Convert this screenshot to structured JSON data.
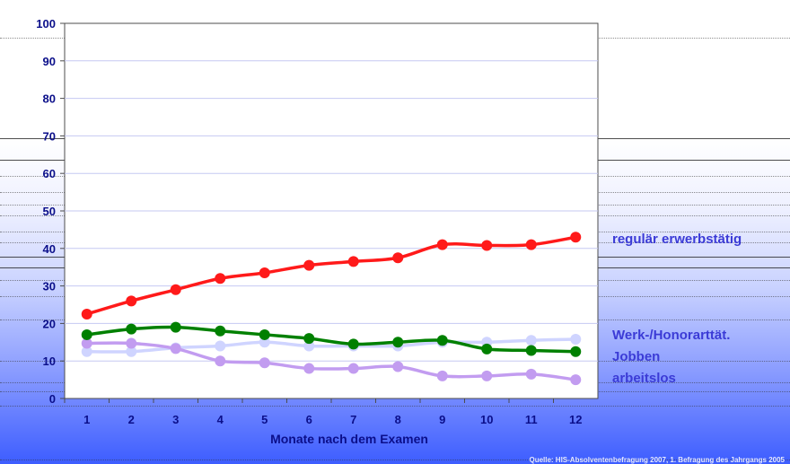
{
  "chart_data": {
    "type": "line",
    "xlabel": "Monate nach dem Examen",
    "ylabel": "",
    "x": [
      1,
      2,
      3,
      4,
      5,
      6,
      7,
      8,
      9,
      10,
      11,
      12
    ],
    "yticks": [
      0,
      10,
      20,
      30,
      40,
      50,
      60,
      70,
      80,
      90,
      100
    ],
    "ylim": [
      0,
      100
    ],
    "grid": true,
    "series": [
      {
        "name": "regulär erwerbstätig",
        "color": "#ff1a1a",
        "values": [
          22.5,
          26,
          29,
          32,
          33.5,
          35.5,
          36.5,
          37.5,
          41,
          40.8,
          41,
          43
        ]
      },
      {
        "name": "Werk-/Honorarttät.",
        "color": "#cfd4ff",
        "values": [
          12.5,
          12.5,
          13.5,
          14,
          15,
          14,
          14,
          14,
          15,
          15,
          15.5,
          15.8
        ]
      },
      {
        "name": "Jobben",
        "color": "#008000",
        "values": [
          17,
          18.5,
          19,
          18,
          17,
          16,
          14.5,
          15,
          15.5,
          13.2,
          12.8,
          12.5
        ]
      },
      {
        "name": "arbeitslos",
        "color": "#c29cf0",
        "values": [
          14.7,
          14.7,
          13.3,
          10,
          9.5,
          8,
          8,
          8.5,
          6,
          6,
          6.5,
          5
        ]
      }
    ]
  },
  "labels": {
    "regular": "regulär erwerbstätig",
    "werk": "Werk-/Honorarttät.",
    "jobben": "Jobben",
    "arbeitslos": "arbeitslos"
  },
  "source": "Quelle: HIS-Absolventenbefragung 2007, 1. Befragung des Jahrgangs 2005"
}
